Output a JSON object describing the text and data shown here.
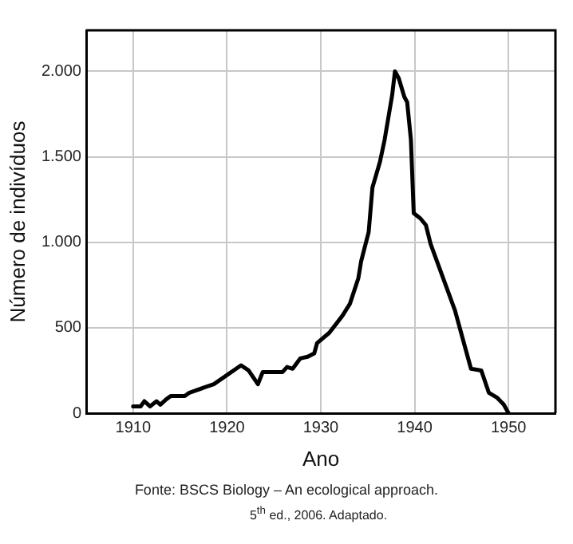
{
  "chart_data": {
    "type": "line",
    "xlabel": "Ano",
    "ylabel": "Número de indivíduos",
    "annotations": [
      "Fonte: BSCS Biology – An ecological approach.",
      "5$^{th}$ ed., 2006. Adaptado."
    ],
    "x": [
      1910,
      1910.8,
      1911.2,
      1911.8,
      1912.5,
      1912.9,
      1913.5,
      1914,
      1915.5,
      1916,
      1918.6,
      1921.5,
      1922.3,
      1923.3,
      1923.8,
      1924.8,
      1925.9,
      1926.4,
      1927,
      1927.8,
      1928.6,
      1929.3,
      1929.6,
      1930.9,
      1932.3,
      1933.1,
      1934,
      1934.3,
      1935.1,
      1935.5,
      1936.3,
      1936.8,
      1937.6,
      1937.9,
      1938.3,
      1938.9,
      1939.2,
      1939.6,
      1939.9,
      1940.6,
      1941.2,
      1941.7,
      1944.3,
      1945.1,
      1946,
      1947.1,
      1947.9,
      1948.8,
      1949.5,
      1950
    ],
    "series": [
      {
        "color": "#000000",
        "values": [
          40,
          40,
          70,
          40,
          70,
          50,
          80,
          100,
          100,
          120,
          170,
          280,
          250,
          170,
          240,
          240,
          240,
          270,
          260,
          320,
          330,
          350,
          410,
          470,
          570,
          640,
          790,
          890,
          1060,
          1320,
          1470,
          1600,
          1860,
          2000,
          1960,
          1850,
          1820,
          1600,
          1170,
          1140,
          1100,
          990,
          600,
          440,
          260,
          250,
          120,
          90,
          50,
          0
        ]
      }
    ],
    "xlim": [
      1905,
      1955
    ],
    "xticks": [
      1910,
      1920,
      1930,
      1940,
      1950
    ],
    "ylim": [
      0,
      2240
    ],
    "yticks": [
      0,
      500,
      {
        "value": 1000,
        "label": "1.000"
      },
      {
        "value": 1500,
        "label": "1.500"
      },
      {
        "value": 2000,
        "label": "2.000"
      }
    ],
    "grid": true,
    "legend": false,
    "marker": "none",
    "line_style": "solid"
  }
}
